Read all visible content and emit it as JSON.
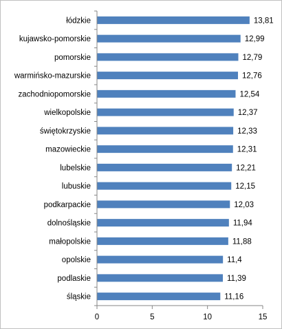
{
  "chart_data": {
    "type": "bar",
    "orientation": "horizontal",
    "categories": [
      "łódzkie",
      "kujawsko-pomorskie",
      "pomorskie",
      "warmińsko-mazurskie",
      "zachodniopomorskie",
      "wielkopolskie",
      "świętokrzyskie",
      "mazowieckie",
      "lubelskie",
      "lubuskie",
      "podkarpackie",
      "dolnośląskie",
      "małopolskie",
      "opolskie",
      "podlaskie",
      "śląskie"
    ],
    "values": [
      13.81,
      12.99,
      12.79,
      12.76,
      12.54,
      12.37,
      12.33,
      12.31,
      12.21,
      12.15,
      12.03,
      11.94,
      11.88,
      11.4,
      11.39,
      11.16
    ],
    "value_labels": [
      "13,81",
      "12,99",
      "12,79",
      "12,76",
      "12,54",
      "12,37",
      "12,33",
      "12,31",
      "12,21",
      "12,15",
      "12,03",
      "11,94",
      "11,88",
      "11,4",
      "11,39",
      "11,16"
    ],
    "xlim": [
      0,
      15
    ],
    "x_ticks": [
      0,
      5,
      10,
      15
    ],
    "x_tick_labels": [
      "0",
      "5",
      "10",
      "15"
    ],
    "grid": false,
    "legend": "none",
    "colors": {
      "bar": "#4f81bd",
      "axis": "#868686"
    }
  }
}
